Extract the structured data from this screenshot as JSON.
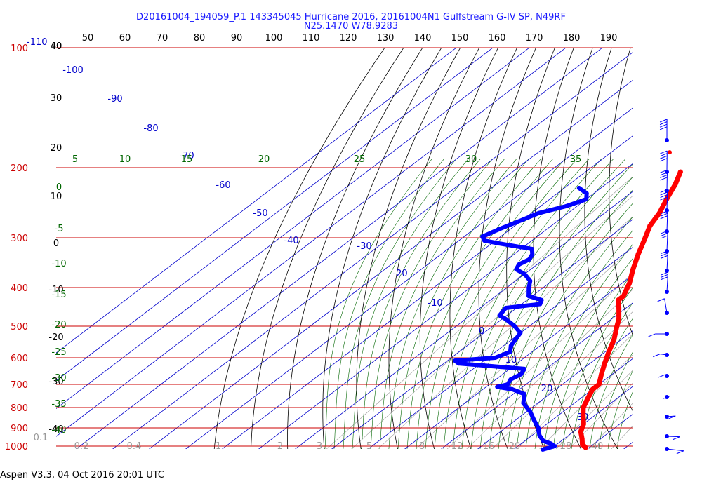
{
  "header": {
    "line1": "D20161004_194059_P.1 143345045 Hurricane 2016, 20161004N1 Gulfstream G-IV SP, N49RF",
    "line2": "N25.1470 W78.9283"
  },
  "footer": "Aspen V3.3, 04 Oct 2016  20:01 UTC",
  "colors": {
    "isobar": "#cc0000",
    "isotherm": "#0000cc",
    "theta": "#000000",
    "mixing_ratio": "#999999",
    "moist_adiabat": "#006600",
    "temperature": "#ff0000",
    "dewpoint": "#0000ff"
  },
  "chart_data": {
    "type": "skew-t",
    "pressure_levels": [
      100,
      200,
      300,
      400,
      500,
      600,
      700,
      800,
      900,
      1000
    ],
    "pressure_labels": [
      "100",
      "200",
      "300",
      "400",
      "500",
      "600",
      "700",
      "800",
      "900",
      "1000"
    ],
    "top_temp_labels": [
      "-110",
      "40",
      "50",
      "60",
      "70",
      "80",
      "90",
      "100",
      "110",
      "120",
      "130",
      "140",
      "150",
      "160",
      "170",
      "180",
      "190"
    ],
    "left_height_labels": [
      "40",
      "30",
      "20",
      "10",
      "0",
      "-10",
      "-20",
      "-30",
      "-40"
    ],
    "isotherm_labels": [
      "-100",
      "-90",
      "-80",
      "-70",
      "-60",
      "-50",
      "-40",
      "-30",
      "-20",
      "-10",
      "0",
      "10",
      "20",
      "30"
    ],
    "moist_adiabat_labels_upper": [
      "5",
      "10",
      "15",
      "20",
      "25",
      "30",
      "35"
    ],
    "moist_adiabat_labels_left": [
      "0",
      "-5",
      "-10",
      "-15",
      "-20",
      "-25",
      "-30",
      "-35",
      "-40"
    ],
    "mixing_ratio_labels": [
      "0.1",
      "0.2",
      "0.4",
      "1",
      "2",
      "3",
      "5",
      "8",
      "12",
      "16",
      "20",
      "28",
      "40"
    ],
    "temperature_profile": [
      {
        "p": 205,
        "t": -44
      },
      {
        "p": 220,
        "t": -41
      },
      {
        "p": 240,
        "t": -38
      },
      {
        "p": 260,
        "t": -35
      },
      {
        "p": 280,
        "t": -33
      },
      {
        "p": 300,
        "t": -30
      },
      {
        "p": 330,
        "t": -26
      },
      {
        "p": 360,
        "t": -22
      },
      {
        "p": 390,
        "t": -18
      },
      {
        "p": 410,
        "t": -16
      },
      {
        "p": 420,
        "t": -15
      },
      {
        "p": 430,
        "t": -15
      },
      {
        "p": 450,
        "t": -12
      },
      {
        "p": 480,
        "t": -8
      },
      {
        "p": 500,
        "t": -6
      },
      {
        "p": 540,
        "t": -2
      },
      {
        "p": 580,
        "t": 1
      },
      {
        "p": 620,
        "t": 4
      },
      {
        "p": 660,
        "t": 7
      },
      {
        "p": 700,
        "t": 10
      },
      {
        "p": 720,
        "t": 10
      },
      {
        "p": 760,
        "t": 12
      },
      {
        "p": 800,
        "t": 14
      },
      {
        "p": 840,
        "t": 17
      },
      {
        "p": 880,
        "t": 20
      },
      {
        "p": 920,
        "t": 22
      },
      {
        "p": 960,
        "t": 25
      },
      {
        "p": 990,
        "t": 27
      },
      {
        "p": 1008,
        "t": 29
      }
    ],
    "temperature_isolated_point": {
      "p": 183,
      "t": -54
    },
    "dewpoint_profile": [
      {
        "p": 225,
        "t": -66
      },
      {
        "p": 232,
        "t": -62
      },
      {
        "p": 240,
        "t": -60
      },
      {
        "p": 250,
        "t": -63
      },
      {
        "p": 260,
        "t": -68
      },
      {
        "p": 270,
        "t": -70
      },
      {
        "p": 285,
        "t": -73
      },
      {
        "p": 298,
        "t": -75
      },
      {
        "p": 305,
        "t": -73
      },
      {
        "p": 310,
        "t": -68
      },
      {
        "p": 320,
        "t": -57
      },
      {
        "p": 330,
        "t": -55
      },
      {
        "p": 340,
        "t": -54
      },
      {
        "p": 350,
        "t": -55
      },
      {
        "p": 360,
        "t": -54
      },
      {
        "p": 370,
        "t": -50
      },
      {
        "p": 385,
        "t": -46
      },
      {
        "p": 400,
        "t": -44
      },
      {
        "p": 420,
        "t": -41
      },
      {
        "p": 430,
        "t": -36
      },
      {
        "p": 440,
        "t": -35
      },
      {
        "p": 450,
        "t": -43
      },
      {
        "p": 470,
        "t": -42
      },
      {
        "p": 480,
        "t": -39
      },
      {
        "p": 500,
        "t": -34
      },
      {
        "p": 520,
        "t": -30
      },
      {
        "p": 540,
        "t": -29
      },
      {
        "p": 560,
        "t": -28
      },
      {
        "p": 580,
        "t": -26
      },
      {
        "p": 600,
        "t": -28
      },
      {
        "p": 610,
        "t": -38
      },
      {
        "p": 620,
        "t": -36
      },
      {
        "p": 640,
        "t": -16
      },
      {
        "p": 660,
        "t": -15
      },
      {
        "p": 680,
        "t": -16
      },
      {
        "p": 700,
        "t": -15
      },
      {
        "p": 710,
        "t": -17
      },
      {
        "p": 720,
        "t": -12
      },
      {
        "p": 740,
        "t": -7
      },
      {
        "p": 780,
        "t": -4
      },
      {
        "p": 820,
        "t": 1
      },
      {
        "p": 860,
        "t": 5
      },
      {
        "p": 900,
        "t": 9
      },
      {
        "p": 940,
        "t": 12
      },
      {
        "p": 970,
        "t": 15
      },
      {
        "p": 985,
        "t": 18
      },
      {
        "p": 1000,
        "t": 20
      },
      {
        "p": 1020,
        "t": 18
      }
    ]
  }
}
